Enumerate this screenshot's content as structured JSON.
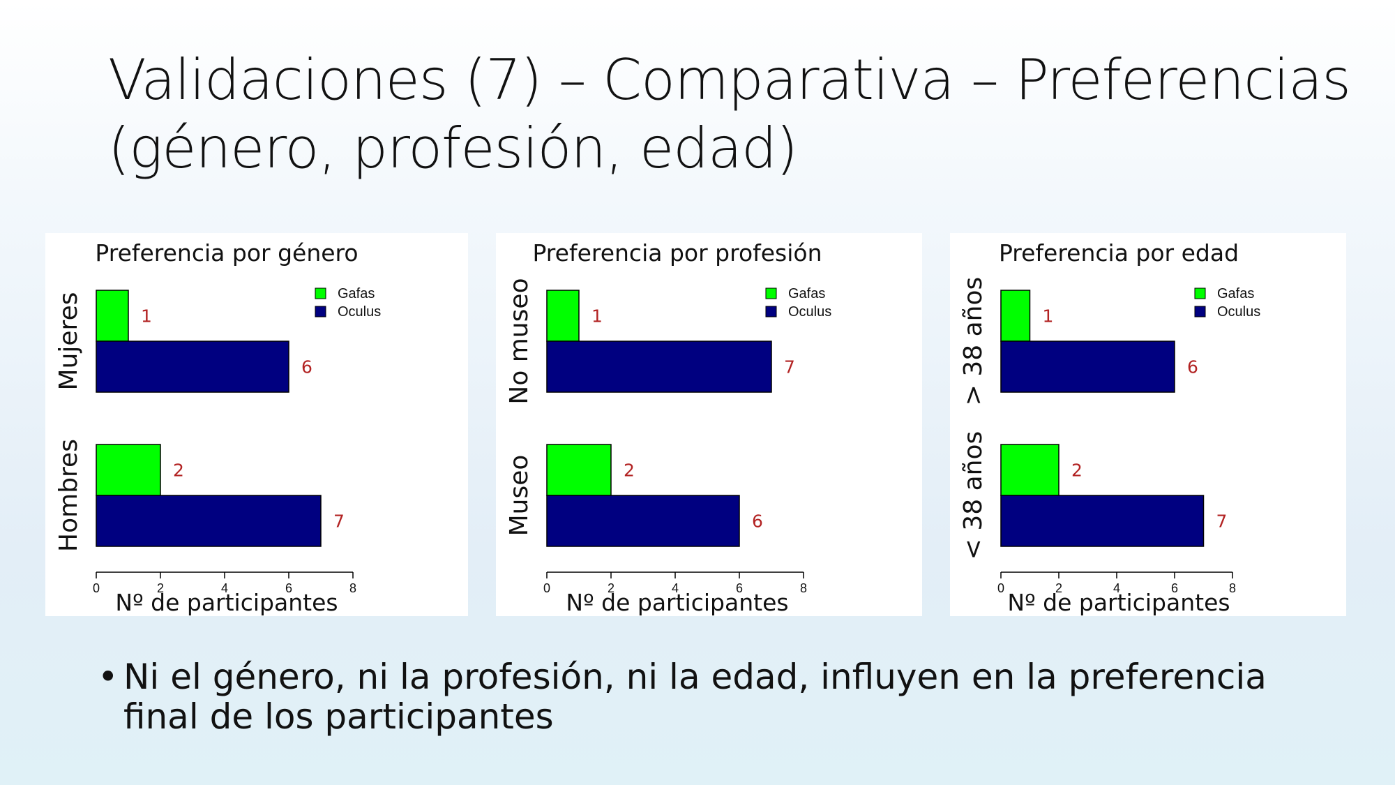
{
  "slide": {
    "title_line1": "Validaciones (7) – Comparativa – Preferencias",
    "title_line2": "(género, profesión, edad)",
    "bullet_marker": "•",
    "bullet_text": "Ni el género, ni la profesión, ni la edad, influyen en la preferencia final de los participantes"
  },
  "colors": {
    "gafas": "#00ff00",
    "oculus": "#000080",
    "value_label": "#b22222"
  },
  "chart_data": [
    {
      "type": "bar",
      "orientation": "horizontal",
      "title": "Preferencia por género",
      "xlabel": "Nº de participantes",
      "xlim": [
        0,
        8
      ],
      "xticks": [
        0,
        2,
        4,
        6,
        8
      ],
      "categories": [
        "Mujeres",
        "Hombres"
      ],
      "series": [
        {
          "name": "Gafas",
          "values": [
            1,
            2
          ]
        },
        {
          "name": "Oculus",
          "values": [
            6,
            7
          ]
        }
      ],
      "legend_position": "top-right"
    },
    {
      "type": "bar",
      "orientation": "horizontal",
      "title": "Preferencia por profesión",
      "xlabel": "Nº de participantes",
      "xlim": [
        0,
        8
      ],
      "xticks": [
        0,
        2,
        4,
        6,
        8
      ],
      "categories": [
        "No museo",
        "Museo"
      ],
      "series": [
        {
          "name": "Gafas",
          "values": [
            1,
            2
          ]
        },
        {
          "name": "Oculus",
          "values": [
            7,
            6
          ]
        }
      ],
      "legend_position": "top-right"
    },
    {
      "type": "bar",
      "orientation": "horizontal",
      "title": "Preferencia por edad",
      "xlabel": "Nº de participantes",
      "xlim": [
        0,
        8
      ],
      "xticks": [
        0,
        2,
        4,
        6,
        8
      ],
      "categories": [
        "> 38 años",
        "< 38 años"
      ],
      "series": [
        {
          "name": "Gafas",
          "values": [
            1,
            2
          ]
        },
        {
          "name": "Oculus",
          "values": [
            6,
            7
          ]
        }
      ],
      "legend_position": "top-right"
    }
  ]
}
